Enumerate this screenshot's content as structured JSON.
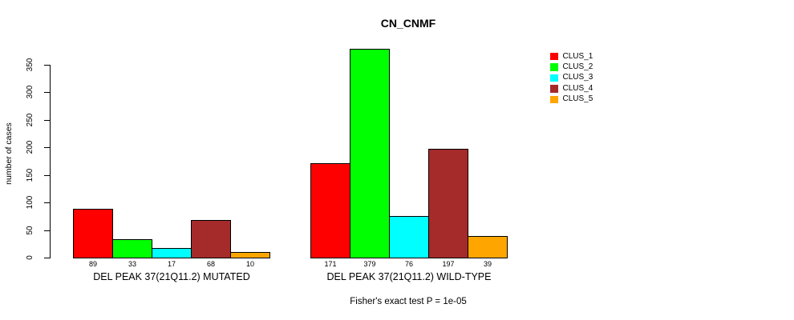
{
  "chart_data": {
    "type": "bar",
    "title": "CN_CNMF",
    "ylabel": "number of cases",
    "xlabel": "",
    "ylim": [
      0,
      350
    ],
    "yticks": [
      0,
      50,
      100,
      150,
      200,
      250,
      300,
      350
    ],
    "grid": false,
    "legend_position": "topright",
    "bar_border_color": "#000000",
    "background_color": "#ffffff",
    "categories": [
      "DEL PEAK 37(21Q11.2) MUTATED",
      "DEL PEAK 37(21Q11.2) WILD-TYPE"
    ],
    "series": [
      {
        "name": "CLUS_1",
        "color": "#ff0000",
        "values": [
          89,
          171
        ]
      },
      {
        "name": "CLUS_2",
        "color": "#00ff00",
        "values": [
          33,
          379
        ]
      },
      {
        "name": "CLUS_3",
        "color": "#00ffff",
        "values": [
          17,
          76
        ]
      },
      {
        "name": "CLUS_4",
        "color": "#a52a2a",
        "values": [
          68,
          197
        ]
      },
      {
        "name": "CLUS_5",
        "color": "#ffa500",
        "values": [
          10,
          39
        ]
      }
    ],
    "value_labels_shown": true,
    "footnote": "Fisher's exact test P = 1e-05"
  }
}
